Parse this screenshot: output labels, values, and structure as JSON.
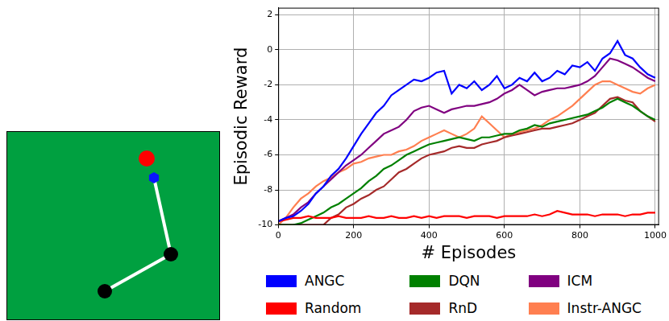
{
  "chart_data": {
    "type": "line",
    "x_label": "# Episodes",
    "y_label": "Episodic Reward",
    "x": [
      0,
      20,
      40,
      60,
      80,
      100,
      120,
      140,
      160,
      180,
      200,
      220,
      240,
      260,
      280,
      300,
      320,
      340,
      360,
      380,
      400,
      420,
      440,
      460,
      480,
      500,
      520,
      540,
      560,
      580,
      600,
      620,
      640,
      660,
      680,
      700,
      720,
      740,
      760,
      780,
      800,
      820,
      840,
      860,
      880,
      900,
      920,
      940,
      960,
      980,
      1000
    ],
    "xlim": [
      0,
      1010
    ],
    "xticks": [
      0,
      200,
      400,
      600,
      800,
      1000
    ],
    "ylim": [
      -10,
      2.4
    ],
    "yticks": [
      -10,
      -8,
      -6,
      -4,
      -2,
      0,
      2
    ],
    "grid": true,
    "legend": "bottom",
    "series": [
      {
        "name": "ANGC",
        "color": "#0000ff",
        "values": [
          -9.8,
          -9.6,
          -9.5,
          -9.2,
          -8.8,
          -8.2,
          -7.8,
          -7.2,
          -6.8,
          -6.2,
          -5.5,
          -4.8,
          -4.2,
          -3.6,
          -3.2,
          -2.6,
          -2.3,
          -2.0,
          -1.7,
          -1.8,
          -1.6,
          -1.3,
          -1.2,
          -2.5,
          -2.0,
          -2.2,
          -1.8,
          -2.3,
          -2.0,
          -1.5,
          -2.2,
          -2.0,
          -1.6,
          -1.8,
          -1.3,
          -1.8,
          -1.6,
          -1.2,
          -1.4,
          -0.9,
          -1.0,
          -0.7,
          -1.2,
          -0.5,
          -0.2,
          0.5,
          -0.3,
          -0.5,
          -1.0,
          -1.4,
          -1.6
        ]
      },
      {
        "name": "Random",
        "color": "#ff0000",
        "values": [
          -9.8,
          -9.7,
          -9.6,
          -9.6,
          -9.5,
          -9.6,
          -9.6,
          -9.6,
          -9.5,
          -9.6,
          -9.6,
          -9.6,
          -9.5,
          -9.6,
          -9.6,
          -9.5,
          -9.6,
          -9.6,
          -9.5,
          -9.6,
          -9.5,
          -9.6,
          -9.5,
          -9.5,
          -9.5,
          -9.6,
          -9.5,
          -9.5,
          -9.5,
          -9.6,
          -9.5,
          -9.5,
          -9.5,
          -9.5,
          -9.4,
          -9.5,
          -9.4,
          -9.2,
          -9.3,
          -9.4,
          -9.4,
          -9.4,
          -9.5,
          -9.4,
          -9.4,
          -9.4,
          -9.5,
          -9.4,
          -9.4,
          -9.3,
          -9.3
        ]
      },
      {
        "name": "DQN",
        "color": "#008000",
        "values": [
          -10,
          -10,
          -10,
          -9.9,
          -9.7,
          -9.5,
          -9.3,
          -9.0,
          -8.8,
          -8.5,
          -8.2,
          -7.9,
          -7.5,
          -7.2,
          -6.8,
          -6.6,
          -6.3,
          -6.0,
          -5.8,
          -5.6,
          -5.4,
          -5.3,
          -5.2,
          -5.1,
          -5.0,
          -5.1,
          -5.2,
          -5.0,
          -5.0,
          -4.9,
          -4.8,
          -4.8,
          -4.6,
          -4.5,
          -4.3,
          -4.4,
          -4.2,
          -4.1,
          -4.0,
          -3.9,
          -3.8,
          -3.7,
          -3.5,
          -3.3,
          -3.0,
          -2.8,
          -3.0,
          -3.2,
          -3.5,
          -3.8,
          -4.0
        ]
      },
      {
        "name": "RnD",
        "color": "#a52a2a",
        "values": [
          -10,
          -10,
          -10,
          -10,
          -10,
          -10,
          -10,
          -9.6,
          -9.4,
          -9.0,
          -8.8,
          -8.5,
          -8.3,
          -8.0,
          -7.8,
          -7.4,
          -7.0,
          -6.8,
          -6.5,
          -6.2,
          -6.0,
          -5.9,
          -5.8,
          -5.6,
          -5.5,
          -5.6,
          -5.6,
          -5.4,
          -5.3,
          -5.2,
          -5.0,
          -4.9,
          -4.8,
          -4.7,
          -4.6,
          -4.5,
          -4.5,
          -4.4,
          -4.3,
          -4.2,
          -4.0,
          -3.8,
          -3.6,
          -3.2,
          -2.8,
          -2.7,
          -2.9,
          -3.0,
          -3.5,
          -3.8,
          -4.1
        ]
      },
      {
        "name": "ICM",
        "color": "#800080",
        "values": [
          -9.8,
          -9.6,
          -9.4,
          -9.0,
          -8.7,
          -8.2,
          -7.8,
          -7.4,
          -7.0,
          -6.6,
          -6.3,
          -6.0,
          -5.6,
          -5.2,
          -4.8,
          -4.6,
          -4.4,
          -4.0,
          -3.5,
          -3.3,
          -3.2,
          -3.4,
          -3.6,
          -3.4,
          -3.3,
          -3.2,
          -3.2,
          -3.1,
          -3.0,
          -2.8,
          -2.5,
          -2.3,
          -2.0,
          -2.3,
          -2.6,
          -2.4,
          -2.3,
          -2.2,
          -2.2,
          -2.1,
          -2.0,
          -1.8,
          -1.5,
          -1.0,
          -0.5,
          -0.6,
          -0.8,
          -1.0,
          -1.3,
          -1.6,
          -1.8
        ]
      },
      {
        "name": "Instr-ANGC",
        "color": "#ff7f50",
        "values": [
          -10,
          -9.6,
          -9.0,
          -8.5,
          -8.2,
          -7.8,
          -7.5,
          -7.3,
          -7.0,
          -6.8,
          -6.5,
          -6.4,
          -6.2,
          -6.1,
          -6.0,
          -6.0,
          -5.8,
          -5.7,
          -5.5,
          -5.2,
          -5.0,
          -4.8,
          -4.6,
          -4.8,
          -5.0,
          -4.8,
          -4.5,
          -3.8,
          -4.2,
          -4.6,
          -5.0,
          -4.8,
          -4.7,
          -4.6,
          -4.5,
          -4.3,
          -4.0,
          -3.8,
          -3.5,
          -3.2,
          -2.8,
          -2.4,
          -2.0,
          -1.8,
          -1.8,
          -2.0,
          -2.2,
          -2.4,
          -2.5,
          -2.2,
          -2.0
        ]
      }
    ]
  }
}
